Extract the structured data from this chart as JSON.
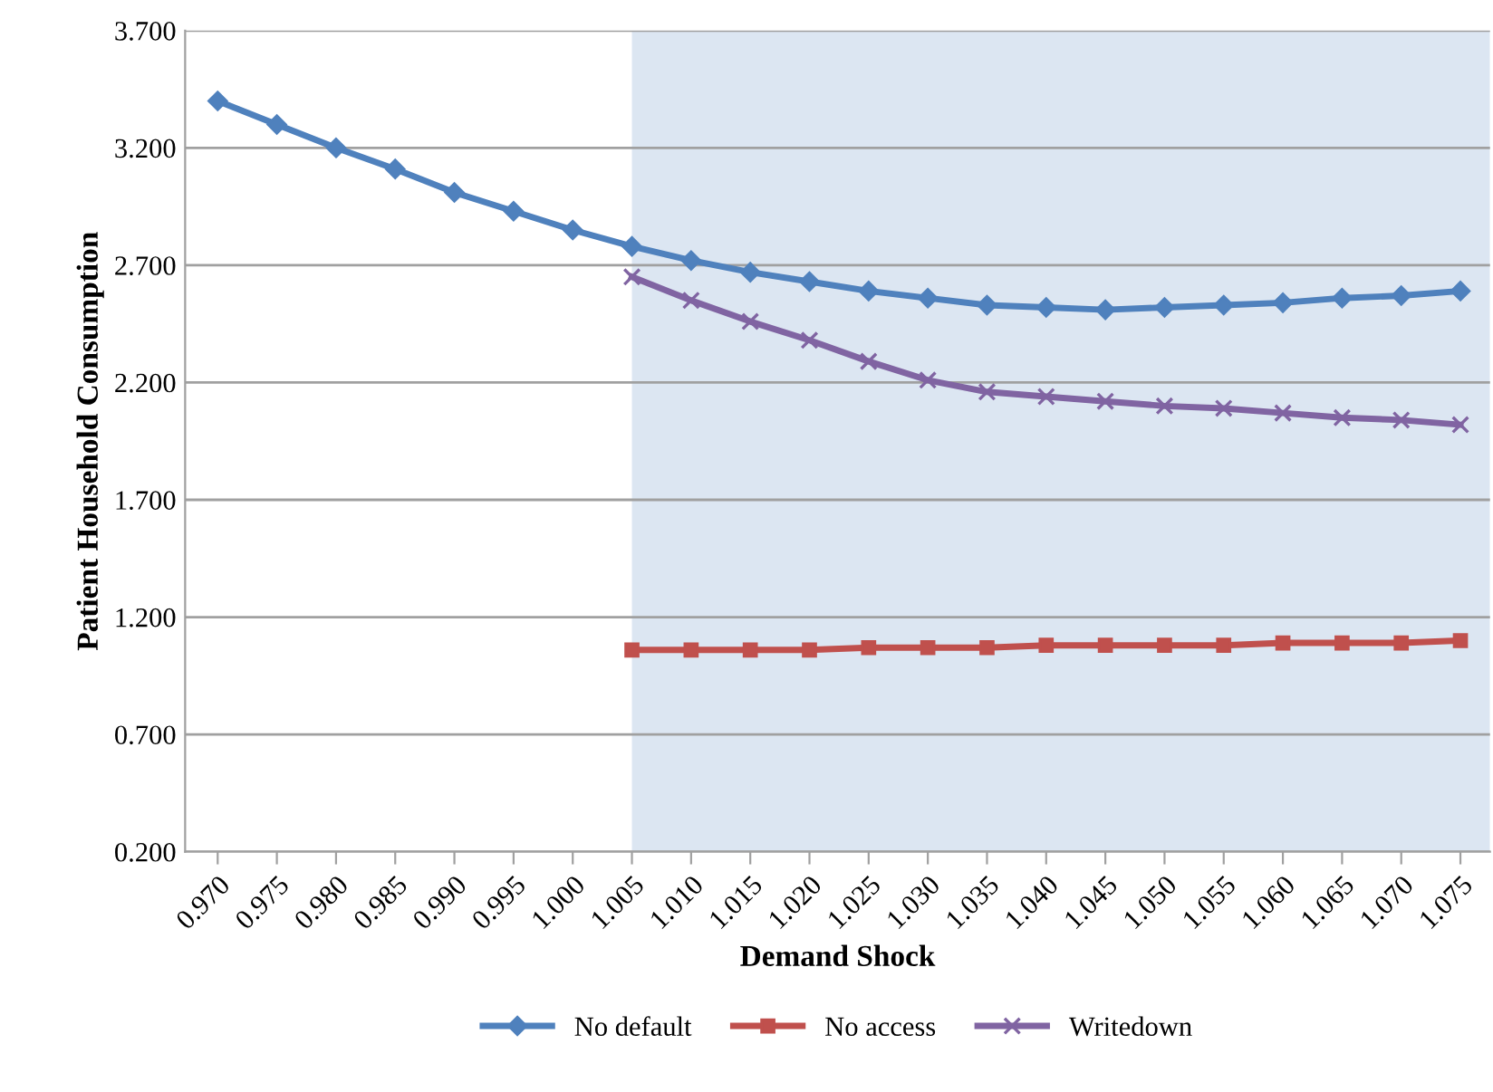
{
  "chart_data": {
    "type": "line",
    "xlabel": "Demand Shock",
    "ylabel": "Patient Household Consumption",
    "categories": [
      "0.970",
      "0.975",
      "0.980",
      "0.985",
      "0.990",
      "0.995",
      "1.000",
      "1.005",
      "1.010",
      "1.015",
      "1.020",
      "1.025",
      "1.030",
      "1.035",
      "1.040",
      "1.045",
      "1.050",
      "1.055",
      "1.060",
      "1.065",
      "1.070",
      "1.075"
    ],
    "series": [
      {
        "name": "No default",
        "color": "#4f81bd",
        "marker": "diamond",
        "values": [
          3.4,
          3.3,
          3.2,
          3.11,
          3.01,
          2.93,
          2.85,
          2.78,
          2.72,
          2.67,
          2.63,
          2.59,
          2.56,
          2.53,
          2.52,
          2.51,
          2.52,
          2.53,
          2.54,
          2.56,
          2.57,
          2.59
        ]
      },
      {
        "name": "No access",
        "color": "#c0504d",
        "marker": "square",
        "values": [
          null,
          null,
          null,
          null,
          null,
          null,
          null,
          1.06,
          1.06,
          1.06,
          1.06,
          1.07,
          1.07,
          1.07,
          1.08,
          1.08,
          1.08,
          1.08,
          1.09,
          1.09,
          1.09,
          1.1
        ]
      },
      {
        "name": "Writedown",
        "color": "#8064a2",
        "marker": "cross",
        "values": [
          null,
          null,
          null,
          null,
          null,
          null,
          null,
          2.65,
          2.55,
          2.46,
          2.38,
          2.29,
          2.21,
          2.16,
          2.14,
          2.12,
          2.1,
          2.09,
          2.07,
          2.05,
          2.04,
          2.02
        ]
      }
    ],
    "ylim": [
      0.2,
      3.7
    ],
    "yticks": [
      {
        "value": 0.2,
        "label": "0.200"
      },
      {
        "value": 0.7,
        "label": "0.700"
      },
      {
        "value": 1.2,
        "label": "1.200"
      },
      {
        "value": 1.7,
        "label": "1.700"
      },
      {
        "value": 2.2,
        "label": "2.200"
      },
      {
        "value": 2.7,
        "label": "2.700"
      },
      {
        "value": 3.2,
        "label": "3.200"
      },
      {
        "value": 3.7,
        "label": "3.700"
      }
    ],
    "bands": [
      {
        "axis": "x",
        "from": "1.005",
        "to": "1.075",
        "color": "#dce6f2"
      }
    ],
    "grid": "y",
    "legend": "bottom"
  }
}
